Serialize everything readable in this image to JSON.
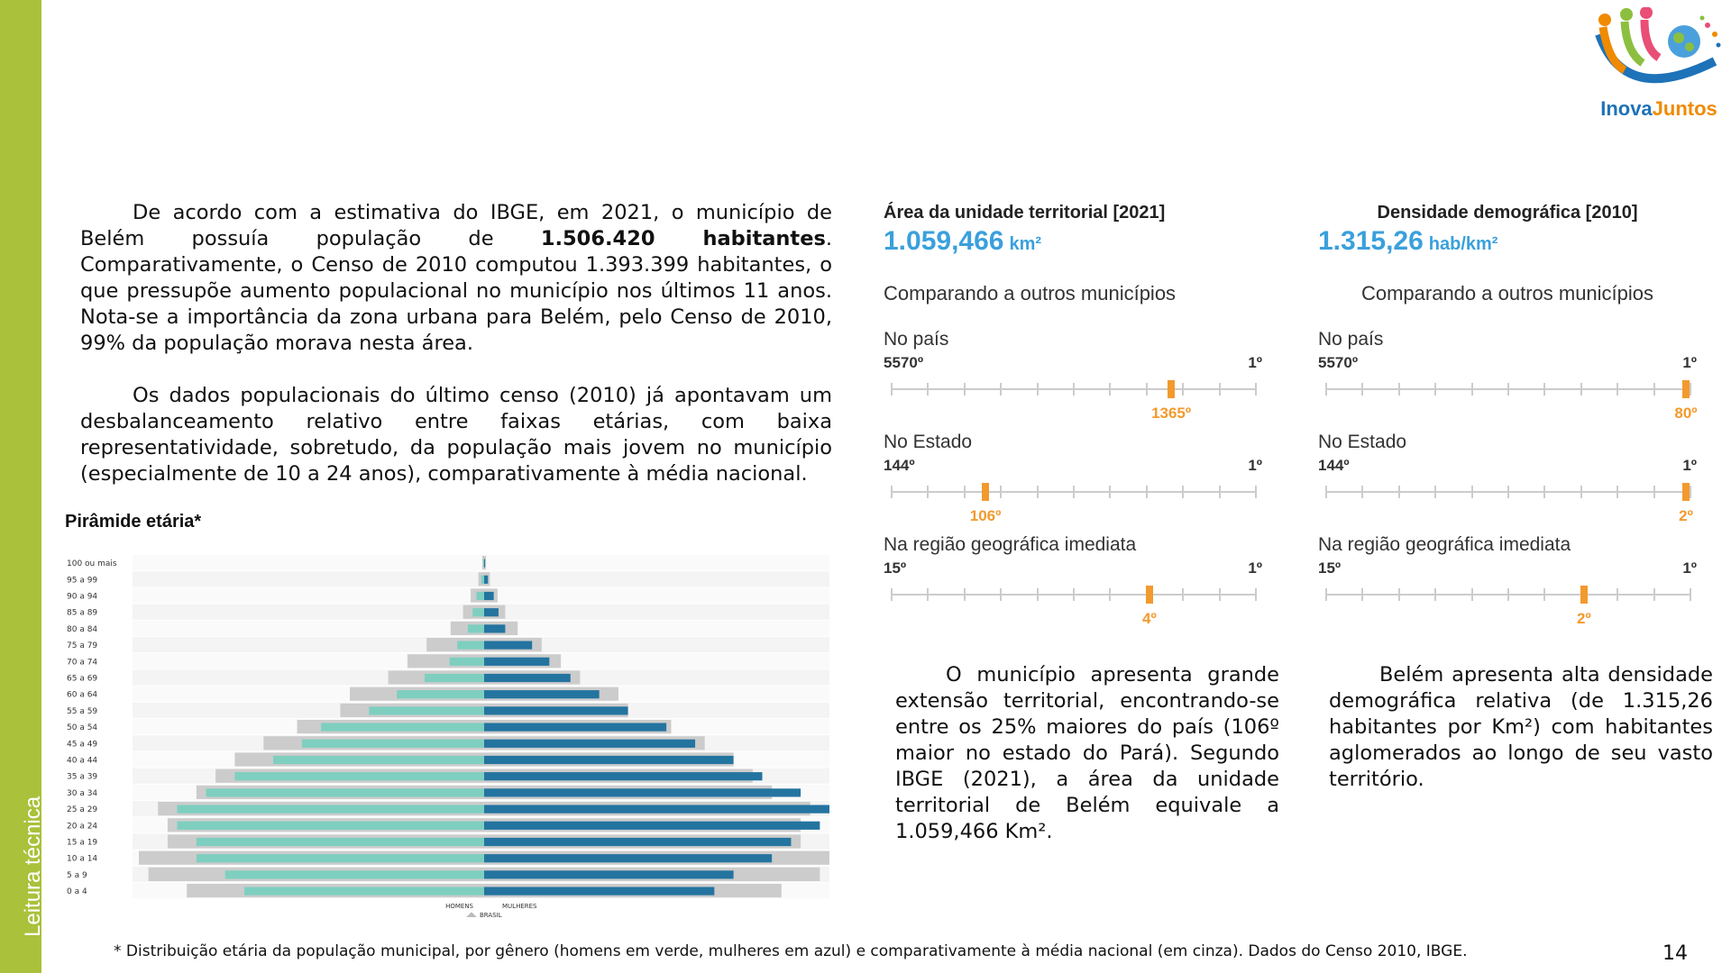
{
  "sidebar": {
    "label": "Leitura técnica"
  },
  "logo": {
    "text_part1": "Inova",
    "text_part2": "Juntos"
  },
  "intro": {
    "p1_part1": "De acordo com a estimativa do IBGE, em 2021, o município de Belém possuía população de ",
    "p1_bold": "1.506.420 habitantes",
    "p1_part2": ". Comparativamente, o Censo de 2010 computou 1.393.399 habitantes, o que pressupõe aumento populacional no município nos últimos 11 anos. Nota-se a importância da zona urbana para Belém, pelo Censo de 2010, 99% da população morava nesta área.",
    "p2": "Os dados populacionais do último censo (2010) já apontavam um desbalanceamento relativo entre faixas etárias, com baixa representatividade, sobretudo, da população mais jovem no município (especialmente de 10 a 24 anos), comparativamente à média nacional."
  },
  "chart_data": {
    "type": "bar",
    "title": "Pirâmide etária*",
    "categories": [
      "100 ou mais",
      "95 a 99",
      "90 a 94",
      "85 a 89",
      "80 a 84",
      "75 a 79",
      "70 a 74",
      "65 a 69",
      "60 a 64",
      "55 a 59",
      "50 a 54",
      "45 a 49",
      "40 a 44",
      "35 a 39",
      "30 a 34",
      "25 a 29",
      "20 a 24",
      "15 a 19",
      "10 a 14",
      "5 a 9",
      "0 a 4"
    ],
    "legend": [
      "HOMENS",
      "MULHERES",
      "BRASIL"
    ],
    "xlim": [
      -3.6,
      3.6
    ],
    "series": [
      {
        "name": "HOMENS",
        "color": "#7ecfc0",
        "values": [
          0.01,
          0.03,
          0.08,
          0.12,
          0.17,
          0.28,
          0.36,
          0.62,
          0.91,
          1.2,
          1.7,
          1.9,
          2.2,
          2.6,
          2.9,
          3.2,
          3.2,
          3.0,
          3.0,
          2.7,
          2.5
        ]
      },
      {
        "name": "MULHERES",
        "color": "#2474a0",
        "values": [
          0.01,
          0.04,
          0.1,
          0.15,
          0.22,
          0.5,
          0.68,
          0.9,
          1.2,
          1.5,
          1.9,
          2.2,
          2.6,
          2.9,
          3.3,
          3.6,
          3.5,
          3.2,
          3.0,
          2.6,
          2.4
        ]
      },
      {
        "name": "BRASIL",
        "color": "#cccccc",
        "values": [
          0.02,
          0.06,
          0.14,
          0.22,
          0.35,
          0.6,
          0.8,
          1.0,
          1.4,
          1.5,
          1.95,
          2.3,
          2.6,
          2.8,
          3.0,
          3.4,
          3.3,
          3.3,
          3.6,
          3.5,
          3.1
        ]
      }
    ]
  },
  "area": {
    "title": "Área da unidade territorial [2021]",
    "value": "1.059,466",
    "unit": "km²",
    "compare": "Comparando a outros municípios",
    "ranks": [
      {
        "label": "No país",
        "min": "5570º",
        "max": "1º",
        "position": "1365º",
        "fraction": 0.77
      },
      {
        "label": "No Estado",
        "min": "144º",
        "max": "1º",
        "position": "106º",
        "fraction": 0.26
      },
      {
        "label": "Na região geográfica imediata",
        "min": "15º",
        "max": "1º",
        "position": "4º",
        "fraction": 0.71
      }
    ]
  },
  "density": {
    "title": "Densidade demográfica [2010]",
    "value": "1.315,26",
    "unit": "hab/km²",
    "compare": "Comparando a outros municípios",
    "ranks": [
      {
        "label": "No país",
        "min": "5570º",
        "max": "1º",
        "position": "80º",
        "fraction": 0.99
      },
      {
        "label": "No Estado",
        "min": "144º",
        "max": "1º",
        "position": "2º",
        "fraction": 0.99
      },
      {
        "label": "Na região geográfica imediata",
        "min": "15º",
        "max": "1º",
        "position": "2º",
        "fraction": 0.71
      }
    ]
  },
  "area_note": "O município apresenta grande extensão territorial, encontrando-se entre os 25% maiores do país (106º maior no estado do Pará). Segundo IBGE (2021), a área da unidade territorial de Belém equivale a 1.059,466 Km².",
  "density_note": "Belém apresenta alta densidade demográfica relativa (de 1.315,26 habitantes por Km²) com habitantes aglomerados ao longo de seu vasto território.",
  "footnote": "* Distribuição etária da população municipal, por gênero (homens em verde, mulheres em azul) e comparativamente à média nacional (em cinza). Dados do Censo 2010, IBGE.",
  "page_number": "14"
}
